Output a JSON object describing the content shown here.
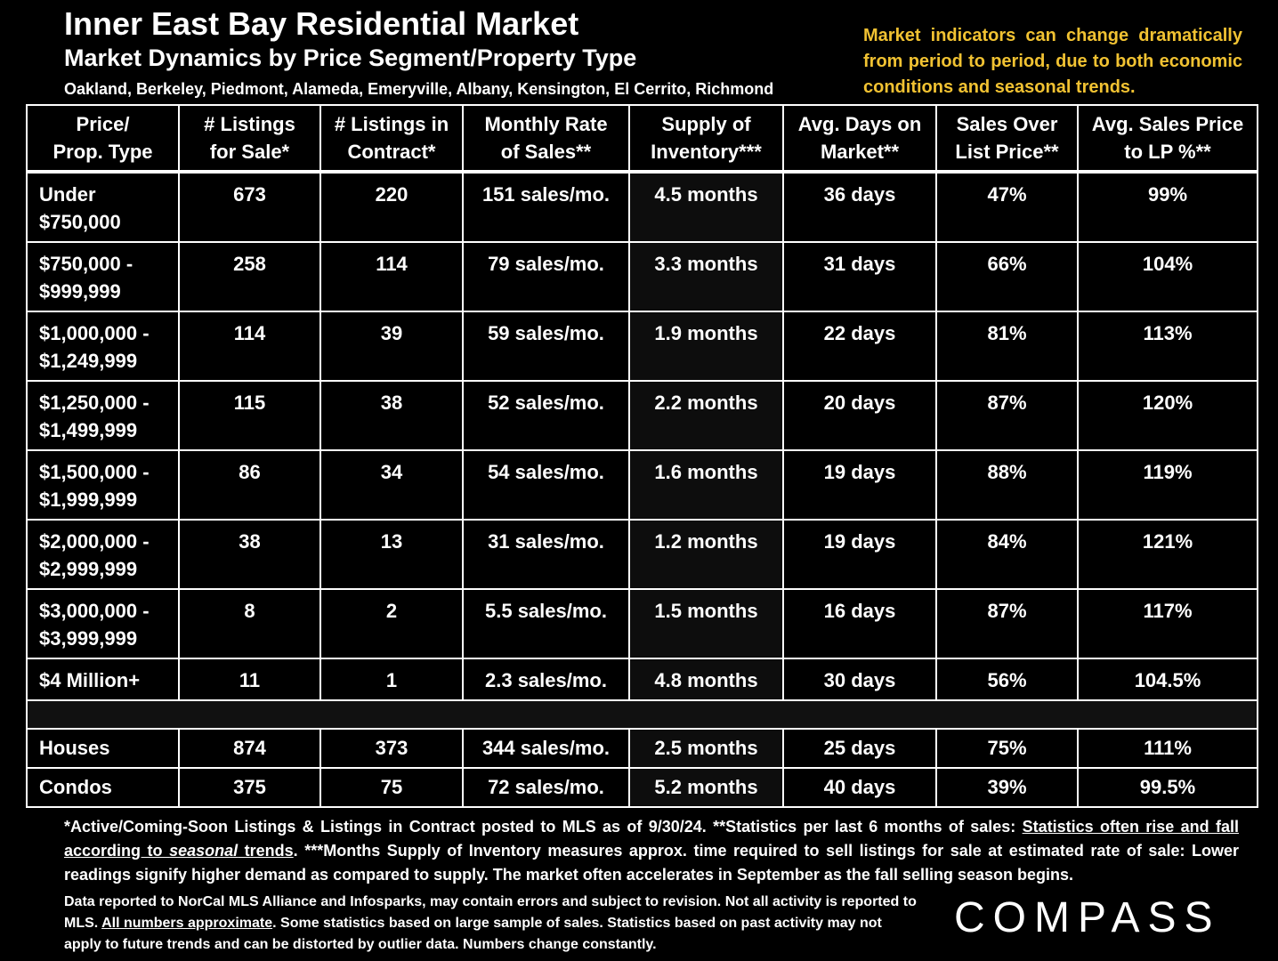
{
  "header": {
    "title": "Inner East Bay Residential Market",
    "subtitle": "Market Dynamics by Price Segment/Property Type",
    "cities": "Oakland, Berkeley, Piedmont, Alameda, Emeryville, Albany, Kensington, El Cerrito, Richmond",
    "note": "Market indicators can change dramatically from period to period, due to both economic conditions and seasonal trends."
  },
  "table": {
    "columns": [
      [
        "Price/",
        "Prop. Type"
      ],
      [
        "# Listings",
        "for Sale*"
      ],
      [
        "# Listings in",
        "Contract*"
      ],
      [
        "Monthly Rate",
        "of Sales**"
      ],
      [
        "Supply of",
        "Inventory***"
      ],
      [
        "Avg. Days on",
        "Market**"
      ],
      [
        "Sales Over",
        "List Price**"
      ],
      [
        "Avg. Sales Price",
        "to LP %**"
      ]
    ],
    "rows": [
      {
        "label": [
          "Under",
          "$750,000"
        ],
        "cells": [
          "673",
          "220",
          "151 sales/mo.",
          "4.5 months",
          "36 days",
          "47%",
          "99%"
        ]
      },
      {
        "label": [
          "$750,000 -",
          "$999,999"
        ],
        "cells": [
          "258",
          "114",
          "79 sales/mo.",
          "3.3 months",
          "31 days",
          "66%",
          "104%"
        ]
      },
      {
        "label": [
          "$1,000,000 -",
          "$1,249,999"
        ],
        "cells": [
          "114",
          "39",
          "59 sales/mo.",
          "1.9 months",
          "22 days",
          "81%",
          "113%"
        ]
      },
      {
        "label": [
          "$1,250,000 -",
          "$1,499,999"
        ],
        "cells": [
          "115",
          "38",
          "52 sales/mo.",
          "2.2 months",
          "20 days",
          "87%",
          "120%"
        ]
      },
      {
        "label": [
          "$1,500,000 -",
          "$1,999,999"
        ],
        "cells": [
          "86",
          "34",
          "54 sales/mo.",
          "1.6 months",
          "19 days",
          "88%",
          "119%"
        ]
      },
      {
        "label": [
          "$2,000,000 -",
          "$2,999,999"
        ],
        "cells": [
          "38",
          "13",
          "31 sales/mo.",
          "1.2 months",
          "19 days",
          "84%",
          "121%"
        ]
      },
      {
        "label": [
          "$3,000,000 -",
          "$3,999,999"
        ],
        "cells": [
          "8",
          "2",
          "5.5 sales/mo.",
          "1.5 months",
          "16 days",
          "87%",
          "117%"
        ]
      },
      {
        "label": [
          "$4 Million+"
        ],
        "cells": [
          "11",
          "1",
          "2.3 sales/mo.",
          "4.8 months",
          "30 days",
          "56%",
          "104.5%"
        ]
      }
    ],
    "type_rows": [
      {
        "label": [
          "Houses"
        ],
        "cells": [
          "874",
          "373",
          "344 sales/mo.",
          "2.5 months",
          "25 days",
          "75%",
          "111%"
        ]
      },
      {
        "label": [
          "Condos"
        ],
        "cells": [
          "375",
          "75",
          "72 sales/mo.",
          "5.2 months",
          "40 days",
          "39%",
          "99.5%"
        ]
      }
    ]
  },
  "footnotes": {
    "line1_a": "*Active/Coming-Soon Listings & Listings in Contract posted to MLS as of 9/30/24. **Statistics per last 6 months of sales: ",
    "line1_u1": "Statistics often rise and fall according to ",
    "line1_u_italic": "seasonal",
    "line1_u2": " trends",
    "line1_b": ".  ***Months Supply of Inventory measures approx. time required to sell listings for sale at estimated rate of sale:  Lower readings signify higher demand as compared to supply. The market often accelerates in September as the fall selling season begins.",
    "line2_a": "Data reported to NorCal MLS Alliance and Infosparks, may contain errors and subject to revision.  Not all activity is reported to MLS. ",
    "line2_u": "All numbers approximate",
    "line2_b": ". Some statistics based on large sample of sales. Statistics based on past activity may not apply to future trends and can be distorted by outlier data. Numbers change constantly."
  },
  "logo": "COMPASS"
}
